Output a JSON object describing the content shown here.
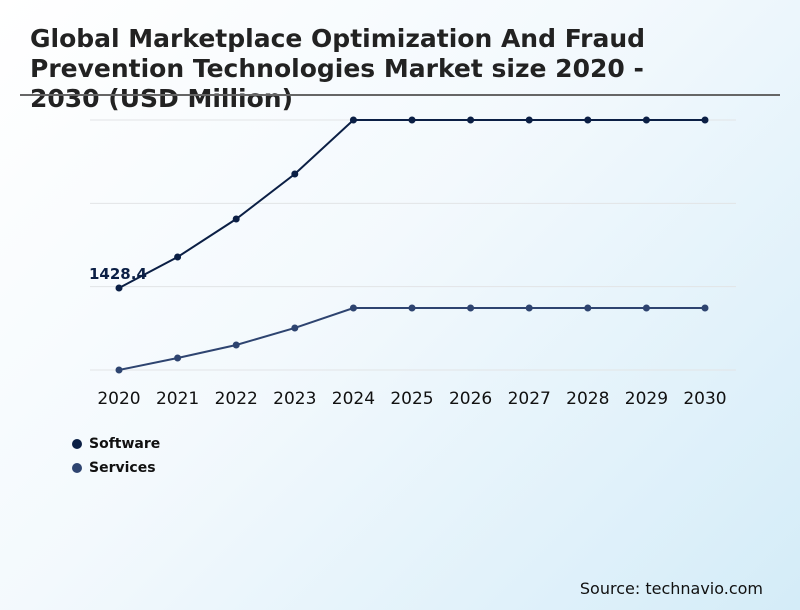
{
  "chart_data": {
    "type": "line",
    "title": "Global Marketplace Optimization And Fraud Prevention Technologies Market size 2020 - 2030 (USD Million)",
    "categories": [
      "2020",
      "2021",
      "2022",
      "2023",
      "2024",
      "2025",
      "2026",
      "2027",
      "2028",
      "2029",
      "2030"
    ],
    "series": [
      {
        "name": "Software",
        "color": "#0b1f45",
        "values": [
          1428.4,
          1968,
          2630,
          3414,
          4355,
          4355,
          4355,
          4355,
          4355,
          4355,
          4355
        ]
      },
      {
        "name": "Services",
        "color": "#2e4470",
        "values": [
          0,
          209,
          436,
          732,
          1080,
          1080,
          1080,
          1080,
          1080,
          1080,
          1080
        ]
      }
    ],
    "data_labels": [
      {
        "series": "Software",
        "category": "2020",
        "text": "1428.4"
      }
    ],
    "ylim": [
      0,
      4355
    ],
    "grid": true,
    "legend": "bottom-left",
    "source": "Source: technavio.com"
  }
}
